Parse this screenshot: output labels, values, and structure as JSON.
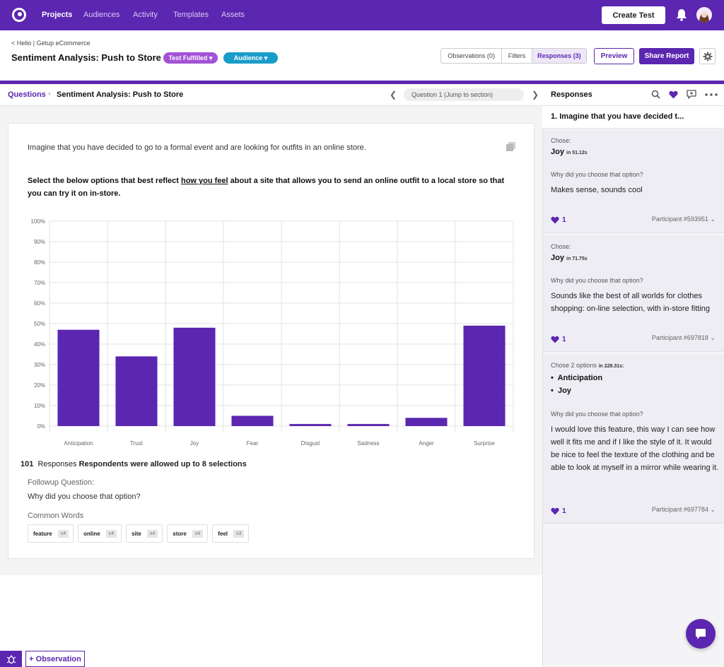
{
  "topnav": {
    "items": [
      "Projects",
      "Audiences",
      "Activity",
      "Templates",
      "Assets"
    ],
    "create_label": "Create Test"
  },
  "header": {
    "breadcrumb": "< Helio | Getup eCommerce",
    "title": "Sentiment Analysis: Push to Store",
    "status_pill": "Test Fulfilled ▾",
    "audience_pill": "Audience  ▾",
    "tabs": [
      "Observations (0)",
      "Filters",
      "Responses (3)"
    ],
    "preview_label": "Preview",
    "share_label": "Share Report"
  },
  "question_bar": {
    "link": "Questions",
    "separator": "‹",
    "title": "Sentiment Analysis: Push to Store",
    "jump_label": "Question 1 (Jump to section)"
  },
  "card": {
    "intro": "Imagine that you have decided to go to a formal event and are looking for outfits in an online store.",
    "question_pre": "Select the below options that best reflect ",
    "question_underlined": "how you feel",
    "question_post": " about a site that allows you to send an online outfit to a local store so that you can try it on in-store.",
    "responses_count": "101",
    "responses_word": "Responses",
    "responses_note": "Respondents were allowed up to 8 selections",
    "followup_label": "Followup Question:",
    "followup_text": "Why did you choose that option?",
    "common_words_label": "Common Words",
    "common_words": [
      {
        "word": "feature",
        "count": "x4"
      },
      {
        "word": "online",
        "count": "x4"
      },
      {
        "word": "site",
        "count": "x4"
      },
      {
        "word": "store",
        "count": "x4"
      },
      {
        "word": "feel",
        "count": "x3"
      }
    ]
  },
  "chart_data": {
    "type": "bar",
    "categories": [
      "Anticipation",
      "Trust",
      "Joy",
      "Fear",
      "Disgust",
      "Sadness",
      "Anger",
      "Surprise"
    ],
    "values": [
      47,
      34,
      48,
      5,
      1,
      1,
      4,
      49
    ],
    "yticks": [
      "0%",
      "10%",
      "20%",
      "30%",
      "40%",
      "50%",
      "60%",
      "70%",
      "80%",
      "90%",
      "100%"
    ],
    "ylim": [
      0,
      100
    ],
    "bar_color": "#5b26b0",
    "grid": true
  },
  "responses_panel": {
    "title": "Responses",
    "question": "1. Imagine that you have decided t...",
    "items": [
      {
        "chose_label": "Chose:",
        "choice": "Joy",
        "time": "in 51.12s",
        "why_label": "Why did you choose that option?",
        "answer": "Makes sense, sounds cool",
        "likes": "1",
        "participant": "Participant #593951"
      },
      {
        "chose_label": "Chose:",
        "choice": "Joy",
        "time": "in 71.75s",
        "why_label": "Why did you choose that option?",
        "answer": "Sounds like the best of all worlds for clothes shopping: on-line selection, with in-store fitting",
        "likes": "1",
        "participant": "Participant #697818"
      },
      {
        "chose_label": "Chose 2 options",
        "time": "in 228.31s:",
        "choices": [
          "Anticipation",
          "Joy"
        ],
        "why_label": "Why did you choose that option?",
        "answer": "I would love this feature, this way I can see how well it fits me and if I like the style of it. It would be nice to feel the texture of the clothing and be able to look at myself in a mirror while wearing it.",
        "likes": "1",
        "participant": "Participant #697784"
      }
    ]
  },
  "bottom": {
    "observation_label": "+ Observation"
  },
  "colors": {
    "brand": "#5b26b0",
    "status_pill": "#a352d6",
    "audience_pill": "#1a9cc9"
  }
}
